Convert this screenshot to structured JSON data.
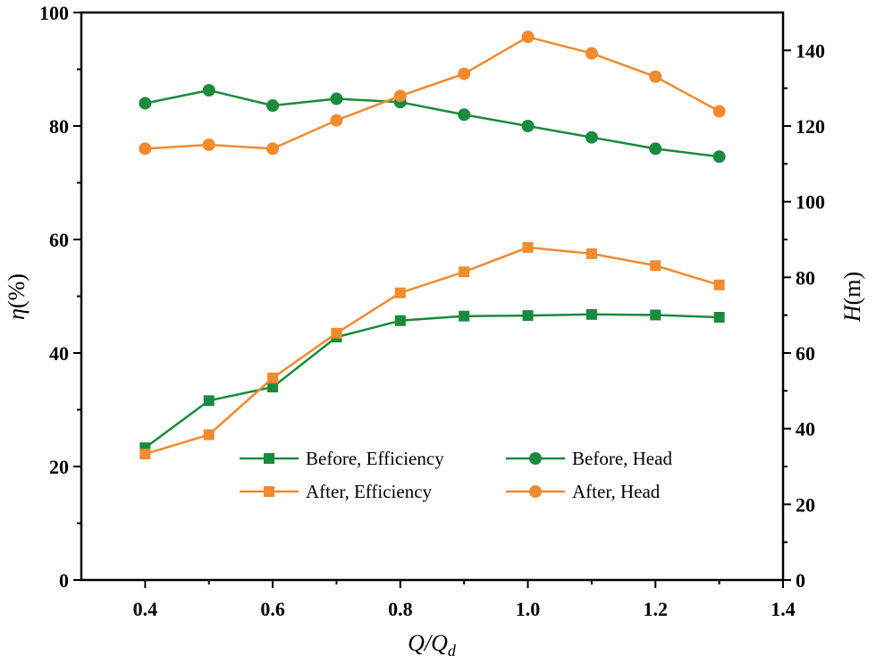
{
  "chart_data": {
    "type": "line",
    "title": "",
    "x": [
      0.4,
      0.5,
      0.6,
      0.7,
      0.8,
      0.9,
      1.0,
      1.1,
      1.2,
      1.3
    ],
    "xlabel": {
      "main": "Q/Q",
      "sub": "d"
    },
    "xlim": [
      0.3,
      1.4
    ],
    "xticks": [
      {
        "value": 0.4,
        "label": "0.4"
      },
      {
        "value": 0.6,
        "label": "0.6"
      },
      {
        "value": 0.8,
        "label": "0.8"
      },
      {
        "value": 1.0,
        "label": "1.0"
      },
      {
        "value": 1.2,
        "label": "1.2"
      },
      {
        "value": 1.4,
        "label": "1.4"
      }
    ],
    "ylabel_left": {
      "symbol": "η",
      "unit": "(%)"
    },
    "ylim_left": [
      0,
      100
    ],
    "yticks_left": [
      {
        "value": 0,
        "label": "0"
      },
      {
        "value": 20,
        "label": "20"
      },
      {
        "value": 40,
        "label": "40"
      },
      {
        "value": 60,
        "label": "60"
      },
      {
        "value": 80,
        "label": "80"
      },
      {
        "value": 100,
        "label": "100"
      }
    ],
    "ylabel_right": {
      "symbol": "H",
      "unit": "(m)"
    },
    "ylim_right": [
      0,
      150
    ],
    "yticks_right": [
      {
        "value": 0,
        "label": "0"
      },
      {
        "value": 20,
        "label": "20"
      },
      {
        "value": 40,
        "label": "40"
      },
      {
        "value": 60,
        "label": "60"
      },
      {
        "value": 80,
        "label": "80"
      },
      {
        "value": 100,
        "label": "100"
      },
      {
        "value": 120,
        "label": "120"
      },
      {
        "value": 140,
        "label": "140"
      }
    ],
    "grid": false,
    "legend_position": "center-bottom",
    "series": [
      {
        "id": "before-efficiency",
        "name": "Before, Efficiency",
        "axis": "left",
        "marker": "square",
        "color": "#1a8a3c",
        "values": [
          23.3,
          31.6,
          34.0,
          42.8,
          45.7,
          46.5,
          46.6,
          46.8,
          46.7,
          46.3
        ]
      },
      {
        "id": "before-head",
        "name": "Before, Head",
        "axis": "left",
        "marker": "circle",
        "color": "#1a8a3c",
        "values": [
          84.0,
          86.3,
          83.6,
          84.8,
          84.2,
          82.0,
          80.0,
          78.0,
          76.0,
          74.6
        ]
      },
      {
        "id": "after-efficiency",
        "name": "After, Efficiency",
        "axis": "left",
        "marker": "square",
        "color": "#f28a2e",
        "values": [
          22.2,
          25.6,
          35.6,
          43.5,
          50.6,
          54.3,
          58.6,
          57.5,
          55.4,
          52.0
        ]
      },
      {
        "id": "after-head",
        "name": "After, Head",
        "axis": "left",
        "marker": "circle",
        "color": "#f28a2e",
        "values": [
          76.0,
          76.7,
          76.0,
          81.0,
          85.3,
          89.2,
          95.7,
          92.8,
          88.7,
          82.6
        ]
      }
    ]
  }
}
